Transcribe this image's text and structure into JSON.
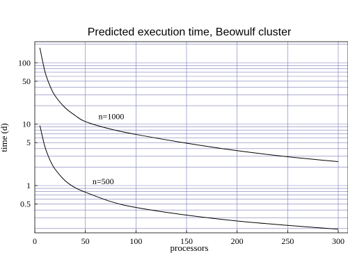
{
  "chart_data": {
    "type": "line",
    "title": "Predicted execution time, Beowulf cluster",
    "xlabel": "processors",
    "ylabel": "time (d)",
    "xlim": [
      0,
      300
    ],
    "ylim": [
      0.17,
      220
    ],
    "yscale": "log",
    "grid": true,
    "x_ticks": [
      0,
      50,
      100,
      150,
      200,
      250,
      300
    ],
    "y_ticks": [
      {
        "value": 0.5,
        "label": "0.5"
      },
      {
        "value": 1,
        "label": "1"
      },
      {
        "value": 5,
        "label": "5"
      },
      {
        "value": 10,
        "label": "10"
      },
      {
        "value": 50,
        "label": "50"
      },
      {
        "value": 100,
        "label": "100"
      }
    ],
    "series": [
      {
        "name": "n=1000",
        "x": [
          5,
          10,
          15,
          20,
          30,
          40,
          50,
          75,
          100,
          150,
          200,
          250,
          300
        ],
        "y": [
          175,
          72,
          42,
          29,
          18.5,
          13.8,
          11,
          8.3,
          6.8,
          4.9,
          3.7,
          2.95,
          2.45
        ]
      },
      {
        "name": "n=500",
        "x": [
          5,
          10,
          15,
          20,
          30,
          40,
          50,
          75,
          100,
          150,
          200,
          250,
          300
        ],
        "y": [
          9.5,
          4.3,
          2.6,
          1.85,
          1.2,
          0.92,
          0.78,
          0.55,
          0.44,
          0.33,
          0.265,
          0.225,
          0.195
        ]
      }
    ],
    "annotations": [
      {
        "text": "n=1000",
        "x": 63,
        "y": 12
      },
      {
        "text": "n=500",
        "x": 57,
        "y": 1.05
      }
    ]
  }
}
